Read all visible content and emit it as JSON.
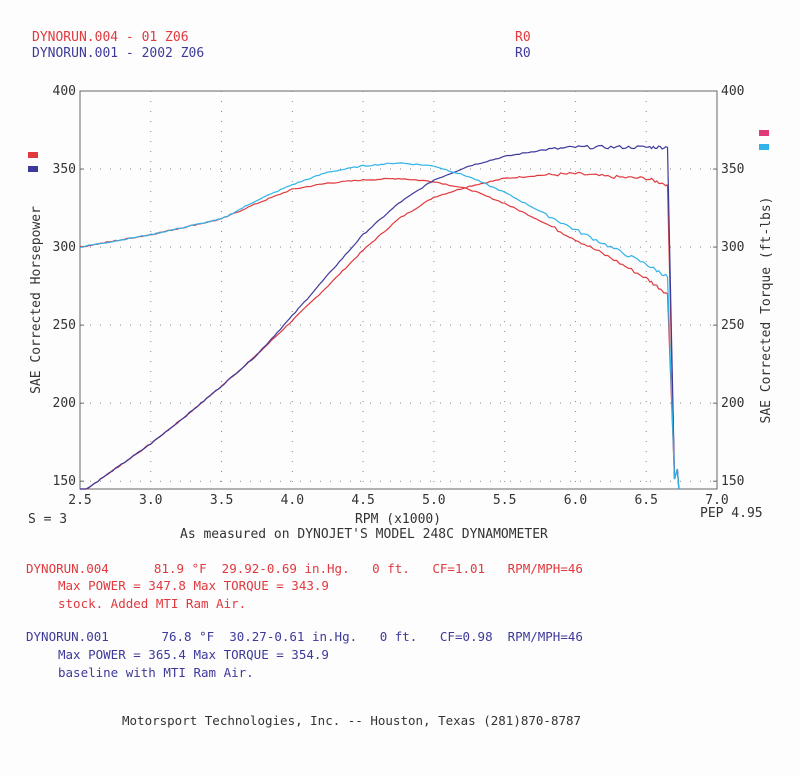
{
  "header": {
    "runs": [
      {
        "name": "DYNORUN.004 - 01 Z06",
        "tag": "R0",
        "color": "#e0393e"
      },
      {
        "name": "DYNORUN.001 - 2002 Z06",
        "tag": "R0",
        "color": "#3e3a9a"
      }
    ]
  },
  "chart_data": {
    "type": "line",
    "xlabel": "RPM (x1000)",
    "ylabel_left": "SAE Corrected Horsepower",
    "ylabel_right": "SAE Corrected Torque (ft-lbs)",
    "xlim": [
      2.5,
      7.0
    ],
    "ylim": [
      145,
      400
    ],
    "x_ticks": [
      "2.5",
      "3.0",
      "3.5",
      "4.0",
      "4.5",
      "5.0",
      "5.5",
      "6.0",
      "6.5",
      "7.0"
    ],
    "y_ticks": [
      "400",
      "350",
      "300",
      "250",
      "200",
      "150"
    ],
    "y_tick_values": [
      400,
      350,
      300,
      250,
      200,
      150
    ],
    "grid": "dotted",
    "series": [
      {
        "name": "DYNORUN.004 Power",
        "color": "#e0393e",
        "x": [
          2.5,
          2.75,
          3.0,
          3.25,
          3.5,
          3.75,
          4.0,
          4.25,
          4.5,
          4.75,
          5.0,
          5.25,
          5.5,
          5.75,
          6.0,
          6.25,
          6.5,
          6.65
        ],
        "y": [
          142,
          158,
          174,
          192,
          211,
          231,
          253,
          275,
          298,
          318,
          332,
          339,
          344,
          346,
          347,
          345,
          344,
          340
        ]
      },
      {
        "name": "DYNORUN.004 Torque",
        "color": "#e0393e",
        "x": [
          2.5,
          2.75,
          3.0,
          3.25,
          3.5,
          3.75,
          4.0,
          4.25,
          4.5,
          4.75,
          5.0,
          5.25,
          5.5,
          5.75,
          6.0,
          6.25,
          6.5,
          6.65
        ],
        "y": [
          300,
          304,
          308,
          313,
          318,
          328,
          337,
          341,
          343,
          344,
          342,
          337,
          328,
          317,
          305,
          293,
          280,
          270
        ]
      },
      {
        "name": "DYNORUN.001 Power",
        "color": "#3e3a9a",
        "x": [
          2.5,
          2.75,
          3.0,
          3.25,
          3.5,
          3.75,
          4.0,
          4.25,
          4.5,
          4.75,
          5.0,
          5.25,
          5.5,
          5.75,
          6.0,
          6.25,
          6.5,
          6.65
        ],
        "y": [
          142,
          158,
          174,
          192,
          211,
          231,
          256,
          282,
          308,
          328,
          343,
          352,
          358,
          362,
          364,
          364,
          364,
          364
        ]
      },
      {
        "name": "DYNORUN.001 Torque",
        "color": "#2fb3e8",
        "x": [
          2.5,
          2.75,
          3.0,
          3.25,
          3.5,
          3.75,
          4.0,
          4.25,
          4.5,
          4.75,
          5.0,
          5.25,
          5.5,
          5.75,
          6.0,
          6.25,
          6.5,
          6.65
        ],
        "y": [
          300,
          304,
          308,
          313,
          318,
          330,
          340,
          348,
          352,
          354,
          352,
          345,
          335,
          323,
          311,
          300,
          289,
          281
        ]
      }
    ]
  },
  "bottom_labels": {
    "smoothing": "S = 3",
    "measured": "As measured on DYNOJET'S MODEL 248C DYNAMOMETER",
    "pep": "PEP 4.95"
  },
  "runs_info": [
    {
      "line1": "DYNORUN.004      81.9 °F  29.92-0.69 in.Hg.   0 ft.   CF=1.01   RPM/MPH=46",
      "line2": "Max POWER = 347.8  Max TORQUE = 343.9",
      "line3": "stock. Added MTI Ram Air."
    },
    {
      "line1": "DYNORUN.001       76.8 °F  30.27-0.61 in.Hg.   0 ft.   CF=0.98  RPM/MPH=46",
      "line2": "Max POWER = 365.4  Max TORQUE = 354.9",
      "line3": "baseline with MTI Ram Air."
    }
  ],
  "footer": "Motorsport Technologies, Inc. -- Houston, Texas (281)870-8787"
}
